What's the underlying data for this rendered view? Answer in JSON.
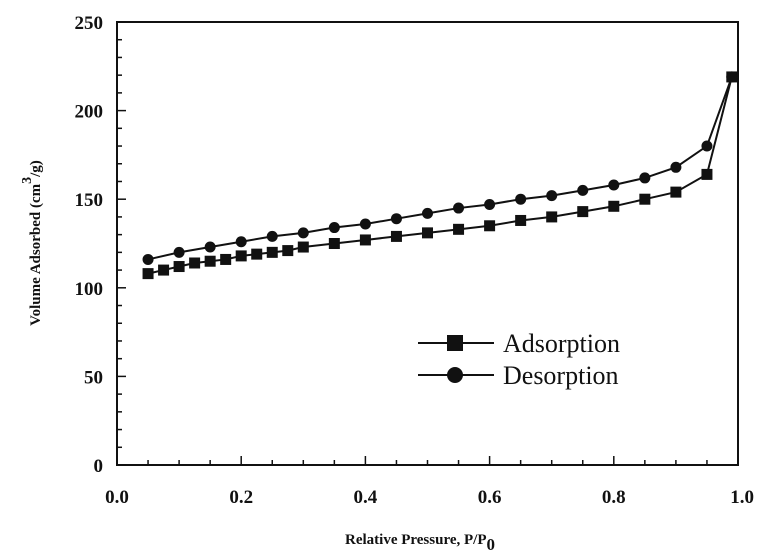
{
  "chart_data": {
    "type": "line",
    "xlabel": "Relative Pressure, P/P",
    "xlabel_sub": "0",
    "ylabel": "Volume Adsorbed (cm",
    "ylabel_sup": "3",
    "ylabel_end": "/g)",
    "xlim": [
      0.0,
      1.0
    ],
    "ylim": [
      0,
      250
    ],
    "x_ticks": [
      "0.0",
      "0.2",
      "0.4",
      "0.6",
      "0.8",
      "1.0"
    ],
    "y_ticks": [
      "0",
      "50",
      "100",
      "150",
      "200",
      "250"
    ],
    "grid": false,
    "legend_position": "center-right",
    "series": [
      {
        "name": "Adsorption",
        "marker": "square",
        "color": "#111111",
        "x": [
          0.05,
          0.075,
          0.1,
          0.125,
          0.15,
          0.175,
          0.2,
          0.225,
          0.25,
          0.275,
          0.3,
          0.35,
          0.4,
          0.45,
          0.5,
          0.55,
          0.6,
          0.65,
          0.7,
          0.75,
          0.8,
          0.85,
          0.9,
          0.95,
          0.99
        ],
        "y": [
          108,
          110,
          112,
          114,
          115,
          116,
          118,
          119,
          120,
          121,
          123,
          125,
          127,
          129,
          131,
          133,
          135,
          138,
          140,
          143,
          146,
          150,
          154,
          164,
          219
        ]
      },
      {
        "name": "Desorption",
        "marker": "circle",
        "color": "#111111",
        "x": [
          0.99,
          0.95,
          0.9,
          0.85,
          0.8,
          0.75,
          0.7,
          0.65,
          0.6,
          0.55,
          0.5,
          0.45,
          0.4,
          0.35,
          0.3,
          0.25,
          0.2,
          0.15,
          0.1,
          0.05
        ],
        "y": [
          219,
          180,
          168,
          162,
          158,
          155,
          152,
          150,
          147,
          145,
          142,
          139,
          136,
          134,
          131,
          129,
          126,
          123,
          120,
          116
        ]
      }
    ]
  }
}
